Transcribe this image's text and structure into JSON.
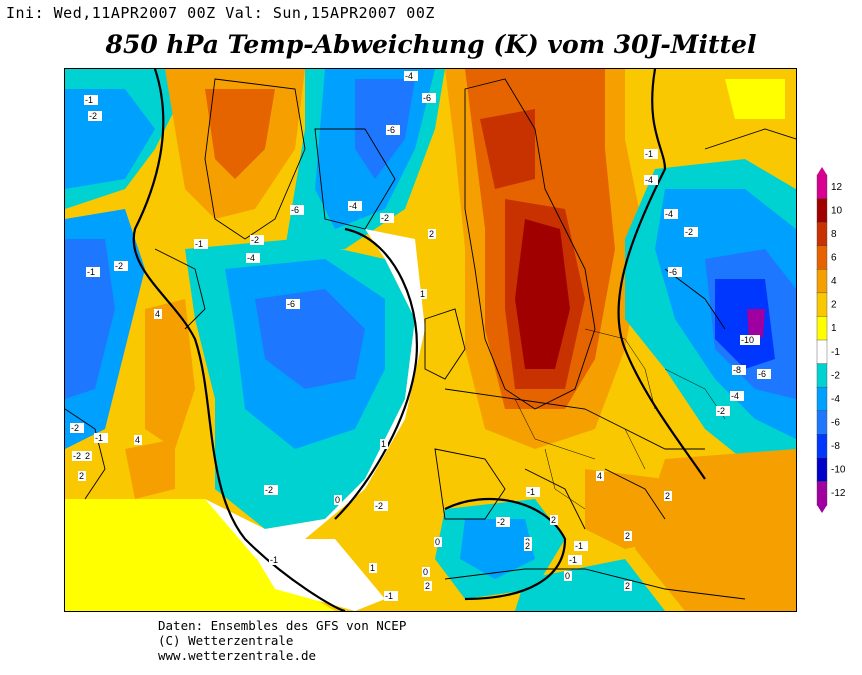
{
  "header": {
    "init_label": "Ini:",
    "init_date": "Wed,11APR2007 00Z",
    "valid_label": "Val:",
    "valid_date": "Sun,15APR2007 00Z"
  },
  "title": "850 hPa Temp-Abweichung (K) vom 30J-Mittel",
  "credits": {
    "line1": "Daten: Ensembles des GFS von NCEP",
    "line2": "(C) Wetterzentrale",
    "line3": "www.wetterzentrale.de"
  },
  "legend": {
    "ticks": [
      "12",
      "10",
      "8",
      "6",
      "4",
      "2",
      "1",
      "-1",
      "-2",
      "-4",
      "-6",
      "-8",
      "-10",
      "-12"
    ],
    "colors": [
      "#d80090",
      "#a00000",
      "#c83200",
      "#e66400",
      "#f5a000",
      "#fac800",
      "#ffff00",
      "#ffffff",
      "#00d2d2",
      "#00a0ff",
      "#1e78ff",
      "#0037ff",
      "#0000c8",
      "#a000a0"
    ]
  },
  "map": {
    "contour_labels": [
      "-4",
      "-6",
      "-6",
      "-4",
      "-2",
      "-4",
      "-6",
      "-2",
      "-1",
      "-2",
      "-4",
      "-6",
      "-10",
      "-8",
      "-6",
      "-4",
      "-2",
      "-4",
      "-2",
      "-1",
      "-2",
      "-2",
      "-1",
      "-1",
      "-2",
      "-2",
      "2",
      "4",
      "2",
      "2",
      "2",
      "1",
      "1",
      "0",
      "0",
      "0",
      "0",
      "-1",
      "4",
      "4",
      "2",
      "2",
      "2",
      "1",
      "-1",
      "-2",
      "-1",
      "-6",
      "-1",
      "-2",
      "-1",
      "2",
      "2",
      "2",
      "-1"
    ]
  }
}
